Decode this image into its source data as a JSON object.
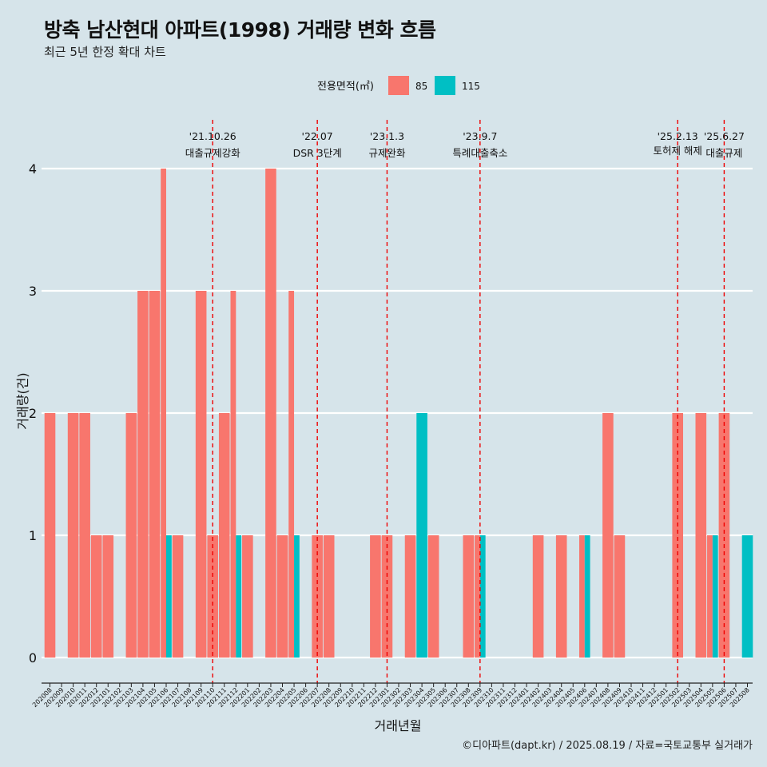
{
  "title": "방축 남산현대 아파트(1998) 거래량 변화 흐름",
  "subtitle": "최근 5년 한정 확대 차트",
  "caption": "©디아파트(dapt.kr) / 2025.08.19 / 자료=국토교통부 실거래가",
  "colors": {
    "background": "#d6e4ea",
    "s85": "#f8766d",
    "s115": "#00bfc4",
    "event_line": "#ee0000",
    "grid": "#ffffff"
  },
  "chart_data": {
    "type": "bar",
    "xlabel": "거래년월",
    "ylabel": "거래량(건)",
    "ylim": [
      0,
      4
    ],
    "yticks": [
      0,
      1,
      2,
      3,
      4
    ],
    "grid": true,
    "legend": {
      "title": "전용면적(㎡)",
      "position": "top"
    },
    "categories": [
      "202008",
      "202009",
      "202010",
      "202011",
      "202012",
      "202101",
      "202102",
      "202103",
      "202104",
      "202105",
      "202106",
      "202107",
      "202108",
      "202109",
      "202110",
      "202111",
      "202112",
      "202201",
      "202202",
      "202203",
      "202204",
      "202205",
      "202206",
      "202207",
      "202208",
      "202209",
      "202210",
      "202211",
      "202212",
      "202301",
      "202302",
      "202303",
      "202304",
      "202305",
      "202306",
      "202307",
      "202308",
      "202309",
      "202310",
      "202311",
      "202312",
      "202401",
      "202402",
      "202403",
      "202404",
      "202405",
      "202406",
      "202407",
      "202408",
      "202409",
      "202410",
      "202411",
      "202412",
      "202501",
      "202502",
      "202503",
      "202504",
      "202505",
      "202506",
      "202507",
      "202508"
    ],
    "series": [
      {
        "name": "85",
        "color": "#f8766d",
        "values": [
          2,
          0,
          2,
          2,
          1,
          1,
          0,
          2,
          3,
          3,
          4,
          1,
          0,
          3,
          1,
          2,
          3,
          1,
          0,
          4,
          1,
          3,
          0,
          1,
          1,
          0,
          0,
          0,
          1,
          1,
          0,
          1,
          0,
          1,
          0,
          0,
          1,
          1,
          0,
          0,
          0,
          0,
          1,
          0,
          1,
          0,
          1,
          0,
          2,
          1,
          0,
          0,
          0,
          0,
          2,
          0,
          2,
          1,
          2,
          0,
          0
        ]
      },
      {
        "name": "115",
        "color": "#00bfc4",
        "values": [
          0,
          0,
          0,
          0,
          0,
          0,
          0,
          0,
          0,
          0,
          1,
          0,
          0,
          0,
          0,
          0,
          1,
          0,
          0,
          0,
          0,
          1,
          0,
          0,
          0,
          0,
          0,
          0,
          0,
          0,
          0,
          0,
          2,
          0,
          0,
          0,
          0,
          1,
          0,
          0,
          0,
          0,
          0,
          0,
          0,
          0,
          1,
          0,
          0,
          0,
          0,
          0,
          0,
          0,
          0,
          0,
          0,
          1,
          0,
          0,
          1
        ]
      }
    ],
    "events": [
      {
        "date": "'21.10.26",
        "label": "대출규제강화",
        "x": "202110"
      },
      {
        "date": "'22.07",
        "label": "DSR 3단계",
        "x": "202207"
      },
      {
        "date": "'23.1.3",
        "label": "규제완화",
        "x": "202301"
      },
      {
        "date": "'23.9.7",
        "label": "특례대출축소",
        "x": "202309"
      },
      {
        "date": "'25.2.13",
        "label": "토허제 해제",
        "x": "202502"
      },
      {
        "date": "'25.6.27",
        "label": "대출규제",
        "x": "202506"
      }
    ]
  }
}
